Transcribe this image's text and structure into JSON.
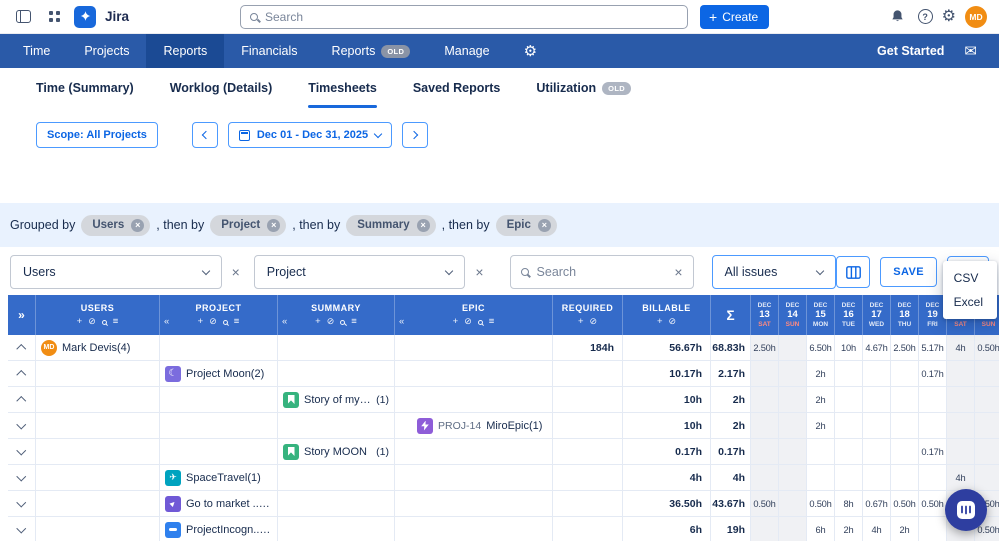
{
  "topbar": {
    "app_name": "Jira",
    "search_placeholder": "Search",
    "create_label": "Create",
    "avatar_initials": "MD"
  },
  "nav": {
    "items": [
      {
        "label": "Time"
      },
      {
        "label": "Projects"
      },
      {
        "label": "Reports",
        "active": true
      },
      {
        "label": "Financials"
      },
      {
        "label": "Reports",
        "badge": "OLD"
      },
      {
        "label": "Manage"
      }
    ],
    "get_started": "Get Started"
  },
  "tabs": [
    {
      "label": "Time (Summary)"
    },
    {
      "label": "Worklog (Details)"
    },
    {
      "label": "Timesheets",
      "active": true
    },
    {
      "label": "Saved Reports"
    },
    {
      "label": "Utilization",
      "badge": "OLD"
    }
  ],
  "toolbar": {
    "scope_label": "Scope: All Projects",
    "date_range": "Dec 01 - Dec 31, 2025"
  },
  "grouping": {
    "prefix": "Grouped by",
    "separator": ", then by",
    "groups": [
      "Users",
      "Project",
      "Summary",
      "Epic"
    ]
  },
  "controls": {
    "users_filter": "Users",
    "project_filter": "Project",
    "search_placeholder": "Search",
    "issues_filter": "All issues",
    "save_label": "SAVE",
    "export_options": [
      "CSV",
      "Excel"
    ]
  },
  "icons": {
    "expand_all": "double-chevron-right",
    "collapse_column": "double-chevron-left",
    "add_column": "plus",
    "hide_column": "eye-off",
    "search_column": "magnifier",
    "column_menu": "menu",
    "export": "download",
    "columns_button": "column-settings",
    "chat": "chat-bubble"
  },
  "colors": {
    "accent": "#0C66E4",
    "navbar": "#2A5AA8",
    "table_header": "#356BC9",
    "weekend_cell": "#F0F1F4",
    "grouping_bar": "#E9F2FE"
  },
  "table": {
    "headers": {
      "expand_all": "»",
      "users": "USERS",
      "project": "PROJECT",
      "summary": "SUMMARY",
      "epic": "EPIC",
      "required": "REQUIRED",
      "billable": "BILLABLE",
      "sigma": "Σ"
    },
    "days": [
      {
        "month": "DEC",
        "num": "13",
        "dow": "SAT",
        "weekend": true
      },
      {
        "month": "DEC",
        "num": "14",
        "dow": "SUN",
        "weekend": true
      },
      {
        "month": "DEC",
        "num": "15",
        "dow": "MON",
        "weekend": false
      },
      {
        "month": "DEC",
        "num": "16",
        "dow": "TUE",
        "weekend": false
      },
      {
        "month": "DEC",
        "num": "17",
        "dow": "WED",
        "weekend": false
      },
      {
        "month": "DEC",
        "num": "18",
        "dow": "THU",
        "weekend": false
      },
      {
        "month": "DEC",
        "num": "19",
        "dow": "FRI",
        "weekend": false
      },
      {
        "month": "DEC",
        "num": "20",
        "dow": "SAT",
        "weekend": true
      },
      {
        "month": "DEC",
        "num": "21",
        "dow": "SUN",
        "weekend": true
      }
    ],
    "rows": [
      {
        "type": "user",
        "caret": "up",
        "avatar": "MD",
        "label": "Mark Devis(4)",
        "required": "184h",
        "billable": "56.67h",
        "total": "68.83h",
        "days": [
          "2.50h",
          "",
          "6.50h",
          "10h",
          "4.67h",
          "2.50h",
          "5.17h",
          "4h",
          "0.50h"
        ]
      },
      {
        "type": "project",
        "caret": "up",
        "icon": "moon-icon",
        "label": "Project Moon(2)",
        "required": "",
        "billable": "10.17h",
        "total": "2.17h",
        "days": [
          "",
          "",
          "2h",
          "",
          "",
          "",
          "0.17h",
          "",
          ""
        ]
      },
      {
        "type": "summary",
        "caret": "up",
        "icon": "story-icon",
        "label": "Story of my life",
        "count": "(1)",
        "required": "",
        "billable": "10h",
        "total": "2h",
        "days": [
          "",
          "",
          "2h",
          "",
          "",
          "",
          "",
          "",
          ""
        ]
      },
      {
        "type": "epic",
        "caret": "down",
        "icon": "epic-icon",
        "key": "PROJ-14",
        "label": "MiroEpic(1)",
        "required": "",
        "billable": "10h",
        "total": "2h",
        "days": [
          "",
          "",
          "2h",
          "",
          "",
          "",
          "",
          "",
          ""
        ]
      },
      {
        "type": "summary",
        "caret": "down",
        "icon": "story-icon",
        "label": "Story MOON",
        "count": "(1)",
        "required": "",
        "billable": "0.17h",
        "total": "0.17h",
        "days": [
          "",
          "",
          "",
          "",
          "",
          "",
          "0.17h",
          "",
          ""
        ]
      },
      {
        "type": "project",
        "caret": "down",
        "icon": "spacetravel-icon",
        "label": "SpaceTravel(1)",
        "required": "",
        "billable": "4h",
        "total": "4h",
        "days": [
          "",
          "",
          "",
          "",
          "",
          "",
          "",
          "4h",
          ""
        ]
      },
      {
        "type": "project",
        "caret": "down",
        "icon": "rocket-icon",
        "label": "Go to market ...(2)",
        "required": "",
        "billable": "36.50h",
        "total": "43.67h",
        "days": [
          "0.50h",
          "",
          "0.50h",
          "8h",
          "0.67h",
          "0.50h",
          "0.50h",
          "",
          "0.50h"
        ]
      },
      {
        "type": "project",
        "caret": "down",
        "icon": "incognito-icon",
        "label": "ProjectIncogn...(1)",
        "required": "",
        "billable": "6h",
        "total": "19h",
        "days": [
          "",
          "",
          "6h",
          "2h",
          "4h",
          "2h",
          "",
          "",
          "0.50h"
        ]
      }
    ]
  }
}
